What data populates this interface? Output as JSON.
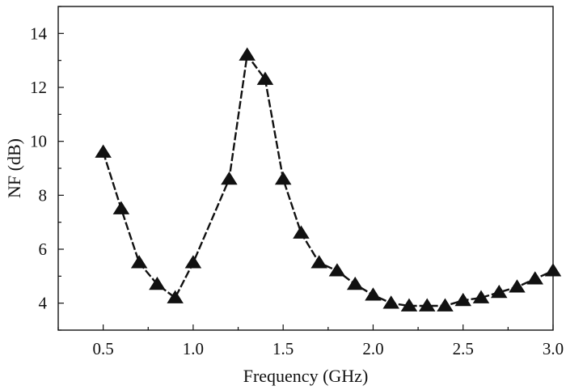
{
  "chart_data": {
    "type": "line",
    "title": "",
    "xlabel": "Frequency (GHz)",
    "ylabel": "NF (dB)",
    "xlim": [
      0.25,
      3.0
    ],
    "ylim": [
      3.0,
      15.0
    ],
    "xticks": [
      0.5,
      1.0,
      1.5,
      2.0,
      2.5,
      3.0
    ],
    "xtick_labels": [
      "0.5",
      "1.0",
      "1.5",
      "2.0",
      "2.5",
      "3.0"
    ],
    "yticks": [
      4,
      6,
      8,
      10,
      12,
      14
    ],
    "ytick_labels": [
      "4",
      "6",
      "8",
      "10",
      "12",
      "14"
    ],
    "grid": false,
    "legend": "none",
    "marker": "filled-triangle",
    "line_style": "dashed",
    "series": [
      {
        "x": [
          0.5,
          0.6,
          0.7,
          0.8,
          0.9,
          1.0,
          1.2,
          1.3,
          1.4,
          1.5,
          1.6,
          1.7,
          1.8,
          1.9,
          2.0,
          2.1,
          2.2,
          2.3,
          2.4,
          2.5,
          2.6,
          2.7,
          2.8,
          2.9,
          3.0
        ],
        "values": [
          9.6,
          7.5,
          5.5,
          4.7,
          4.2,
          5.5,
          8.6,
          13.2,
          12.3,
          8.6,
          6.6,
          5.5,
          5.2,
          4.7,
          4.3,
          4.0,
          3.9,
          3.9,
          3.9,
          4.1,
          4.2,
          4.4,
          4.6,
          4.9,
          5.2
        ]
      }
    ]
  }
}
